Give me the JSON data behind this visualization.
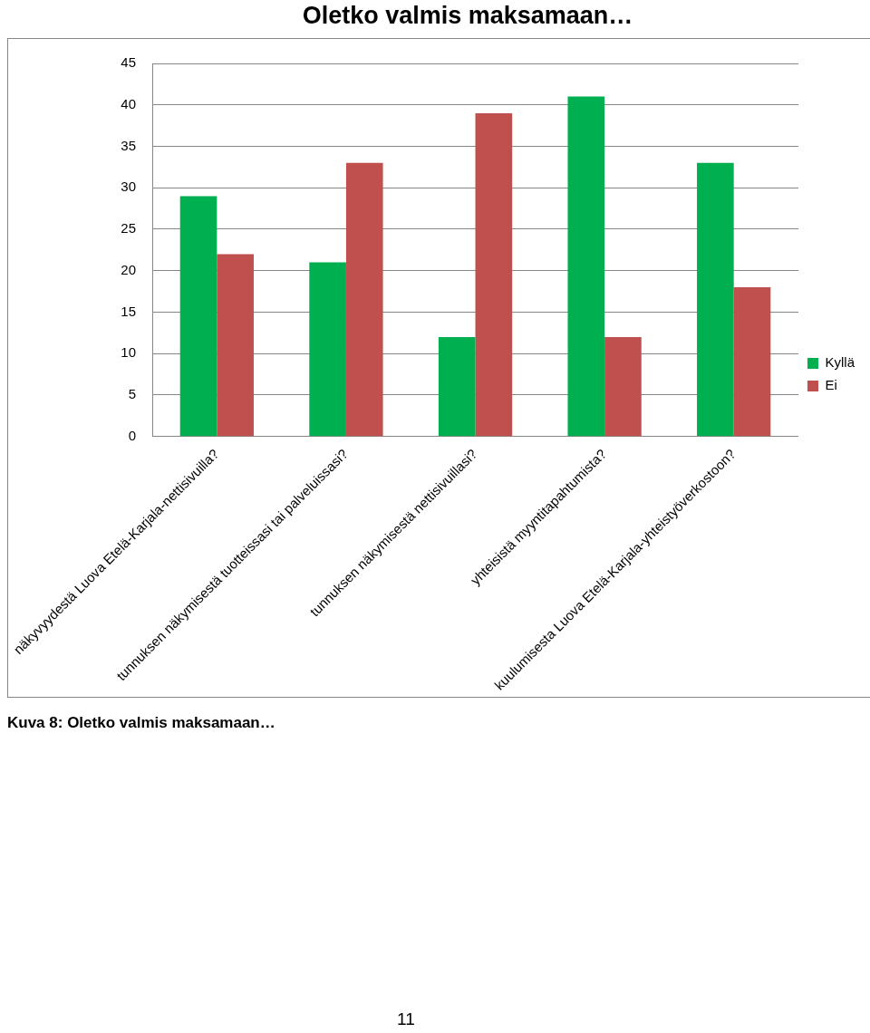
{
  "chart_data": {
    "type": "bar",
    "title": "Oletko valmis maksamaan…",
    "categories": [
      "näkyvyydestä Luova Etelä-Karjala-nettisivuilla?",
      "tunnuksen näkymisestä tuotteissasi tai palveluissasi?",
      "tunnuksen näkymisestä nettisivuillasi?",
      "yhteisistä myyntitapahtumista?",
      "kuulumisesta Luova Etelä-Karjala-yhteistyöverkostoon?"
    ],
    "series": [
      {
        "name": "Kyllä",
        "color": "#00b050",
        "values": [
          29,
          21,
          12,
          41,
          33
        ]
      },
      {
        "name": "Ei",
        "color": "#c0504d",
        "values": [
          22,
          33,
          39,
          12,
          18
        ]
      }
    ],
    "ylim": [
      0,
      45
    ],
    "yticks": [
      0,
      5,
      10,
      15,
      20,
      25,
      30,
      35,
      40,
      45
    ],
    "grid": "y",
    "legend": "right",
    "annotations": [
      "Kuva 8: Oletko valmis maksamaan…",
      "11"
    ]
  }
}
